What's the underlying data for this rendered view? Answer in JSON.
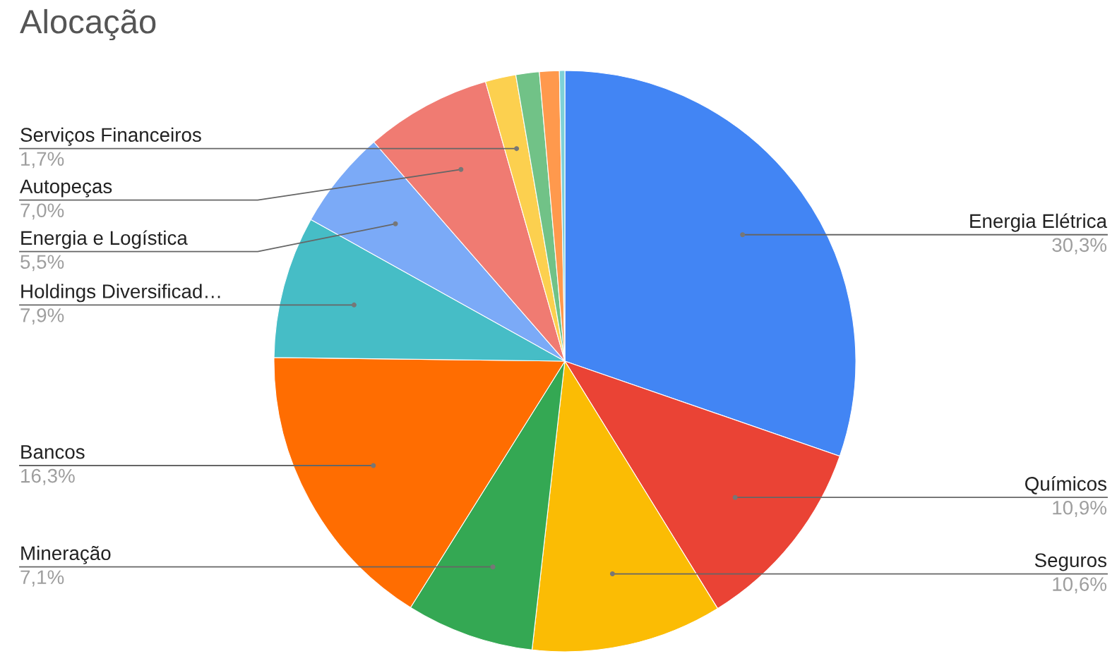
{
  "chart_data": {
    "type": "pie",
    "title": "Alocação",
    "categories": [
      "Energia Elétrica",
      "Químicos",
      "Seguros",
      "Mineração",
      "Bancos",
      "Holdings Diversificad…",
      "Energia e Logística",
      "Autopeças",
      "Serviços Financeiros",
      null,
      null,
      null
    ],
    "values": [
      30.3,
      10.9,
      10.6,
      7.1,
      16.3,
      7.9,
      5.5,
      7.0,
      1.7,
      1.3,
      1.1,
      0.3
    ],
    "value_labels": [
      "30,3%",
      "10,9%",
      "10,6%",
      "7,1%",
      "16,3%",
      "7,9%",
      "5,5%",
      "7,0%",
      "1,7%",
      null,
      null,
      null
    ],
    "colors": [
      "#4285f4",
      "#ea4335",
      "#fbbc04",
      "#34a853",
      "#ff6d01",
      "#46bdc6",
      "#7baaf7",
      "#f07b72",
      "#fcd04f",
      "#71c287",
      "#ff994d",
      "#7ed1d7"
    ]
  }
}
